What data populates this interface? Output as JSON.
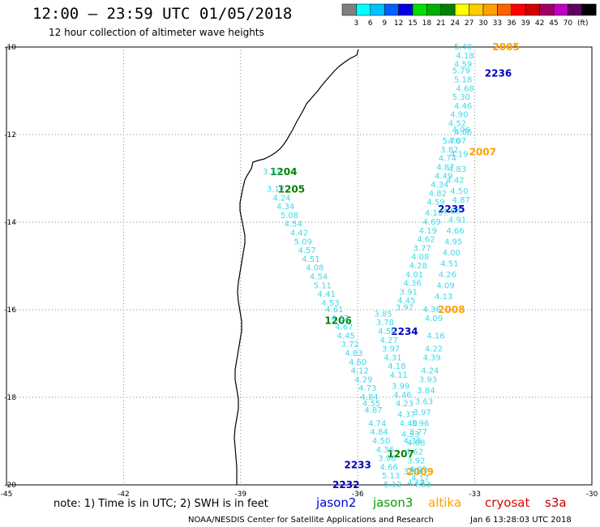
{
  "header": {
    "title": "12:00 – 23:59 UTC 01/05/2018",
    "subtitle": "12 hour collection of altimeter wave heights"
  },
  "legend": {
    "unit": "(ft)",
    "swatches": [
      {
        "color": "#808080",
        "label": ""
      },
      {
        "color": "#00ffff",
        "label": "3"
      },
      {
        "color": "#00c0ff",
        "label": "6"
      },
      {
        "color": "#0060ff",
        "label": "9"
      },
      {
        "color": "#0000e0",
        "label": "12"
      },
      {
        "color": "#00e000",
        "label": "15"
      },
      {
        "color": "#00b000",
        "label": "18"
      },
      {
        "color": "#008000",
        "label": "21"
      },
      {
        "color": "#ffff00",
        "label": "24"
      },
      {
        "color": "#ffcc00",
        "label": "27"
      },
      {
        "color": "#ffa000",
        "label": "30"
      },
      {
        "color": "#ff6000",
        "label": "33"
      },
      {
        "color": "#ff0000",
        "label": "36"
      },
      {
        "color": "#d00000",
        "label": "39"
      },
      {
        "color": "#a00060",
        "label": "42"
      },
      {
        "color": "#c000c0",
        "label": "45"
      },
      {
        "color": "#600060",
        "label": "70"
      },
      {
        "color": "#000000",
        "label": ""
      }
    ]
  },
  "axes": {
    "lon_ticks": [
      "-45",
      "-42",
      "-39",
      "-36",
      "-33",
      "-30"
    ],
    "lat_ticks": [
      "-10",
      "-12",
      "-14",
      "-16",
      "-18",
      "-20"
    ],
    "lon_range": [
      -45,
      -30
    ],
    "lat_range": [
      -20,
      -10
    ]
  },
  "pass_labels": [
    {
      "text": "2005",
      "lon": -32.2,
      "lat": -10.0,
      "color": "#ffa000"
    },
    {
      "text": "2236",
      "lon": -32.4,
      "lat": -10.6,
      "color": "#0000c0"
    },
    {
      "text": "2007",
      "lon": -32.8,
      "lat": -12.4,
      "color": "#ffa000"
    },
    {
      "text": "1204",
      "lon": -37.9,
      "lat": -12.85,
      "color": "#008000"
    },
    {
      "text": "1205",
      "lon": -37.7,
      "lat": -13.25,
      "color": "#008000"
    },
    {
      "text": "2235",
      "lon": -33.6,
      "lat": -13.7,
      "color": "#0000c0"
    },
    {
      "text": "2008",
      "lon": -33.6,
      "lat": -16.0,
      "color": "#ffa000"
    },
    {
      "text": "1206",
      "lon": -36.5,
      "lat": -16.25,
      "color": "#008000"
    },
    {
      "text": "2234",
      "lon": -34.8,
      "lat": -16.5,
      "color": "#0000c0"
    },
    {
      "text": "1207",
      "lon": -34.9,
      "lat": -19.3,
      "color": "#008000"
    },
    {
      "text": "2009",
      "lon": -34.4,
      "lat": -19.7,
      "color": "#ffa000"
    },
    {
      "text": "2233",
      "lon": -36.0,
      "lat": -19.55,
      "color": "#0000c0"
    },
    {
      "text": "2232",
      "lon": -36.3,
      "lat": -20.0,
      "color": "#0000c0"
    }
  ],
  "wave_values": [
    {
      "v": "3.31",
      "lon": -38.2,
      "lat": -12.85
    },
    {
      "v": "3.17",
      "lon": -38.1,
      "lat": -13.25
    },
    {
      "v": "4.24",
      "lon": -37.95,
      "lat": -13.45
    },
    {
      "v": "4.34",
      "lon": -37.85,
      "lat": -13.65
    },
    {
      "v": "5.08",
      "lon": -37.75,
      "lat": -13.85
    },
    {
      "v": "4.54",
      "lon": -37.65,
      "lat": -14.05
    },
    {
      "v": "4.42",
      "lon": -37.5,
      "lat": -14.25
    },
    {
      "v": "5.09",
      "lon": -37.4,
      "lat": -14.45
    },
    {
      "v": "4.57",
      "lon": -37.3,
      "lat": -14.65
    },
    {
      "v": "4.51",
      "lon": -37.2,
      "lat": -14.85
    },
    {
      "v": "4.08",
      "lon": -37.1,
      "lat": -15.05
    },
    {
      "v": "4.54",
      "lon": -37.0,
      "lat": -15.25
    },
    {
      "v": "5.11",
      "lon": -36.9,
      "lat": -15.45
    },
    {
      "v": "4.41",
      "lon": -36.8,
      "lat": -15.65
    },
    {
      "v": "4.53",
      "lon": -36.7,
      "lat": -15.85
    },
    {
      "v": "4.61",
      "lon": -36.6,
      "lat": -16.0
    },
    {
      "v": "4.37",
      "lon": -36.45,
      "lat": -16.2
    },
    {
      "v": "4.67",
      "lon": -36.35,
      "lat": -16.4
    },
    {
      "v": "4.45",
      "lon": -36.3,
      "lat": -16.6
    },
    {
      "v": "3.72",
      "lon": -36.2,
      "lat": -16.8
    },
    {
      "v": "4.83",
      "lon": -36.1,
      "lat": -17.0
    },
    {
      "v": "4.60",
      "lon": -36.0,
      "lat": -17.2
    },
    {
      "v": "4.12",
      "lon": -35.95,
      "lat": -17.4
    },
    {
      "v": "4.29",
      "lon": -35.85,
      "lat": -17.6
    },
    {
      "v": "4.73",
      "lon": -35.75,
      "lat": -17.8
    },
    {
      "v": "4.84",
      "lon": -35.7,
      "lat": -18.0
    },
    {
      "v": "4.55",
      "lon": -35.65,
      "lat": -18.15
    },
    {
      "v": "4.87",
      "lon": -35.6,
      "lat": -18.3
    },
    {
      "v": "4.74",
      "lon": -35.5,
      "lat": -18.6
    },
    {
      "v": "4.84",
      "lon": -35.45,
      "lat": -18.8
    },
    {
      "v": "4.50",
      "lon": -35.4,
      "lat": -19.0
    },
    {
      "v": "4.36",
      "lon": -35.3,
      "lat": -19.2
    },
    {
      "v": "3.96",
      "lon": -35.25,
      "lat": -19.4
    },
    {
      "v": "4.66",
      "lon": -35.2,
      "lat": -19.6
    },
    {
      "v": "5.13",
      "lon": -35.15,
      "lat": -19.8
    },
    {
      "v": "5.12",
      "lon": -35.1,
      "lat": -20.0
    },
    {
      "v": "3.85",
      "lon": -35.35,
      "lat": -16.1
    },
    {
      "v": "3.78",
      "lon": -35.3,
      "lat": -16.3
    },
    {
      "v": "4.56",
      "lon": -35.25,
      "lat": -16.5
    },
    {
      "v": "4.27",
      "lon": -35.2,
      "lat": -16.7
    },
    {
      "v": "3.97",
      "lon": -35.15,
      "lat": -16.9
    },
    {
      "v": "4.31",
      "lon": -35.1,
      "lat": -17.1
    },
    {
      "v": "4.18",
      "lon": -35.0,
      "lat": -17.3
    },
    {
      "v": "4.11",
      "lon": -34.95,
      "lat": -17.5
    },
    {
      "v": "3.99",
      "lon": -34.9,
      "lat": -17.75
    },
    {
      "v": "4.46",
      "lon": -34.85,
      "lat": -17.95
    },
    {
      "v": "4.23",
      "lon": -34.8,
      "lat": -18.15
    },
    {
      "v": "4.37",
      "lon": -34.75,
      "lat": -18.4
    },
    {
      "v": "4.40",
      "lon": -34.7,
      "lat": -18.6
    },
    {
      "v": "4.53",
      "lon": -34.65,
      "lat": -18.85
    },
    {
      "v": "4.38",
      "lon": -34.6,
      "lat": -19.0
    },
    {
      "v": "4.62",
      "lon": -34.55,
      "lat": -19.25
    },
    {
      "v": "3.92",
      "lon": -34.5,
      "lat": -19.45
    },
    {
      "v": "4.09",
      "lon": -34.45,
      "lat": -19.65
    },
    {
      "v": "4.17",
      "lon": -34.4,
      "lat": -19.85
    },
    {
      "v": "4.53",
      "lon": -34.35,
      "lat": -20.0
    },
    {
      "v": "4.14",
      "lon": -34.5,
      "lat": -19.95
    },
    {
      "v": "3.80",
      "lon": -34.6,
      "lat": -19.7
    },
    {
      "v": "4.36",
      "lon": -34.1,
      "lat": -16.0
    },
    {
      "v": "4.09",
      "lon": -34.05,
      "lat": -16.2
    },
    {
      "v": "4.16",
      "lon": -34.0,
      "lat": -16.6
    },
    {
      "v": "4.22",
      "lon": -34.05,
      "lat": -16.9
    },
    {
      "v": "4.39",
      "lon": -34.1,
      "lat": -17.1
    },
    {
      "v": "4.24",
      "lon": -34.15,
      "lat": -17.4
    },
    {
      "v": "3.93",
      "lon": -34.2,
      "lat": -17.6
    },
    {
      "v": "3.84",
      "lon": -34.25,
      "lat": -17.85
    },
    {
      "v": "3.63",
      "lon": -34.3,
      "lat": -18.1
    },
    {
      "v": "3.97",
      "lon": -34.35,
      "lat": -18.35
    },
    {
      "v": "3.96",
      "lon": -34.4,
      "lat": -18.6
    },
    {
      "v": "3.77",
      "lon": -34.45,
      "lat": -18.8
    },
    {
      "v": "4.08",
      "lon": -34.5,
      "lat": -19.05
    },
    {
      "v": "4.13",
      "lon": -33.8,
      "lat": -15.7
    },
    {
      "v": "4.09",
      "lon": -33.75,
      "lat": -15.45
    },
    {
      "v": "4.26",
      "lon": -33.7,
      "lat": -15.2
    },
    {
      "v": "4.51",
      "lon": -33.65,
      "lat": -14.95
    },
    {
      "v": "4.00",
      "lon": -33.6,
      "lat": -14.7
    },
    {
      "v": "4.95",
      "lon": -33.55,
      "lat": -14.45
    },
    {
      "v": "4.66",
      "lon": -33.5,
      "lat": -14.2
    },
    {
      "v": "4.91",
      "lon": -33.45,
      "lat": -13.95
    },
    {
      "v": "4.63",
      "lon": -33.6,
      "lat": -13.75
    },
    {
      "v": "4.87",
      "lon": -33.35,
      "lat": -13.5
    },
    {
      "v": "4.50",
      "lon": -33.4,
      "lat": -13.3
    },
    {
      "v": "4.42",
      "lon": -33.5,
      "lat": -13.05
    },
    {
      "v": "4.83",
      "lon": -33.45,
      "lat": -12.8
    },
    {
      "v": "4.19",
      "lon": -33.4,
      "lat": -12.45
    },
    {
      "v": "4.07",
      "lon": -33.45,
      "lat": -12.15
    },
    {
      "v": "4.06",
      "lon": -33.35,
      "lat": -11.9
    },
    {
      "v": "5.76",
      "lon": -33.6,
      "lat": -12.15
    },
    {
      "v": "3.82",
      "lon": -33.65,
      "lat": -12.35
    },
    {
      "v": "4.74",
      "lon": -33.7,
      "lat": -12.55
    },
    {
      "v": "4.87",
      "lon": -33.75,
      "lat": -12.75
    },
    {
      "v": "4.49",
      "lon": -33.8,
      "lat": -12.95
    },
    {
      "v": "4.34",
      "lon": -33.9,
      "lat": -13.15
    },
    {
      "v": "4.82",
      "lon": -33.95,
      "lat": -13.35
    },
    {
      "v": "4.59",
      "lon": -34.0,
      "lat": -13.55
    },
    {
      "v": "4.10",
      "lon": -34.05,
      "lat": -13.8
    },
    {
      "v": "4.69",
      "lon": -34.1,
      "lat": -14.0
    },
    {
      "v": "4.19",
      "lon": -34.2,
      "lat": -14.2
    },
    {
      "v": "4.62",
      "lon": -34.25,
      "lat": -14.4
    },
    {
      "v": "3.77",
      "lon": -34.35,
      "lat": -14.6
    },
    {
      "v": "4.08",
      "lon": -34.4,
      "lat": -14.8
    },
    {
      "v": "4.28",
      "lon": -34.45,
      "lat": -15.0
    },
    {
      "v": "4.01",
      "lon": -34.55,
      "lat": -15.2
    },
    {
      "v": "4.36",
      "lon": -34.6,
      "lat": -15.4
    },
    {
      "v": "3.91",
      "lon": -34.7,
      "lat": -15.6
    },
    {
      "v": "4.45",
      "lon": -34.75,
      "lat": -15.8
    },
    {
      "v": "3.97",
      "lon": -34.8,
      "lat": -15.95
    },
    {
      "v": "5.40",
      "lon": -33.3,
      "lat": -10.0
    },
    {
      "v": "4.18",
      "lon": -33.25,
      "lat": -10.2
    },
    {
      "v": "4.59",
      "lon": -33.3,
      "lat": -10.4
    },
    {
      "v": "5.79",
      "lon": -33.35,
      "lat": -10.55
    },
    {
      "v": "5.18",
      "lon": -33.3,
      "lat": -10.75
    },
    {
      "v": "4.68",
      "lon": -33.25,
      "lat": -10.95
    },
    {
      "v": "5.30",
      "lon": -33.35,
      "lat": -11.15
    },
    {
      "v": "4.46",
      "lon": -33.3,
      "lat": -11.35
    },
    {
      "v": "4.90",
      "lon": -33.4,
      "lat": -11.55
    },
    {
      "v": "4.52",
      "lon": -33.45,
      "lat": -11.75
    },
    {
      "v": "4.06",
      "lon": -33.3,
      "lat": -11.95
    }
  ],
  "footer": {
    "note": "note:  1) Time is in UTC;  2) SWH is in feet",
    "satellites": [
      {
        "name": "jason2",
        "color": "#0000e0"
      },
      {
        "name": "jason3",
        "color": "#00a000"
      },
      {
        "name": "altika",
        "color": "#ffa000"
      },
      {
        "name": "cryosat",
        "color": "#e00000"
      },
      {
        "name": "s3a",
        "color": "#c00000"
      }
    ],
    "credit_left": "NOAA/NESDIS Center for Satellite Applications and Research",
    "credit_right": "Jan  6 13:28:03 UTC 2018"
  }
}
